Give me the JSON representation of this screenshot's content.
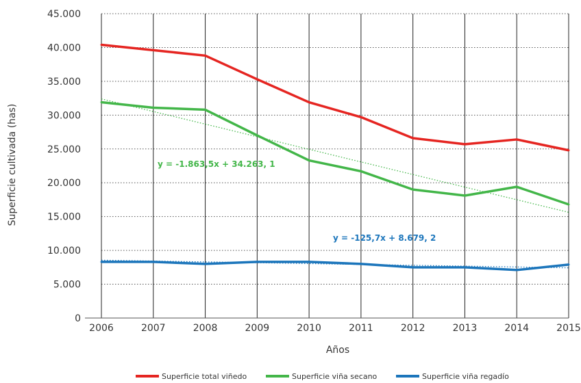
{
  "chart_data": {
    "type": "line",
    "xlabel": "Años",
    "ylabel": "Superficie cultivada (has)",
    "x": [
      2006,
      2007,
      2008,
      2009,
      2010,
      2011,
      2012,
      2013,
      2014,
      2015
    ],
    "ylim": [
      0,
      45000
    ],
    "yticks": [
      0,
      5000,
      10000,
      15000,
      20000,
      25000,
      30000,
      35000,
      40000,
      45000
    ],
    "ytick_labels": [
      "0",
      "5.000",
      "10.000",
      "15.000",
      "20.000",
      "25.000",
      "30.000",
      "35.000",
      "40.000",
      "45.000"
    ],
    "grid": "horizontal dotted, vertical solid",
    "legend_position": "bottom",
    "series": [
      {
        "name": "Superficie total viñedo",
        "color": "#e52521",
        "values": [
          40400,
          39600,
          38800,
          35300,
          31900,
          29700,
          26600,
          25700,
          26400,
          24800
        ]
      },
      {
        "name": "Superficie viña secano",
        "color": "#43b649",
        "values": [
          31900,
          31100,
          30800,
          27000,
          23300,
          21700,
          19000,
          18100,
          19400,
          16800
        ]
      },
      {
        "name": "Superficie viña regadío",
        "color": "#1b75bb",
        "values": [
          8300,
          8300,
          8000,
          8300,
          8300,
          8000,
          7500,
          7500,
          7100,
          7900
        ]
      }
    ],
    "trendlines": [
      {
        "series": "Superficie viña secano",
        "color": "#43b649",
        "slope": -1863.5,
        "intercept": 34263.1,
        "label": "y = -1.863,5x + 34.263, 1"
      },
      {
        "series": "Superficie viña regadío",
        "color": "#1b75bb",
        "slope": -125.7,
        "intercept": 8679.2,
        "label": "y = -125,7x + 8.679, 2"
      }
    ]
  }
}
